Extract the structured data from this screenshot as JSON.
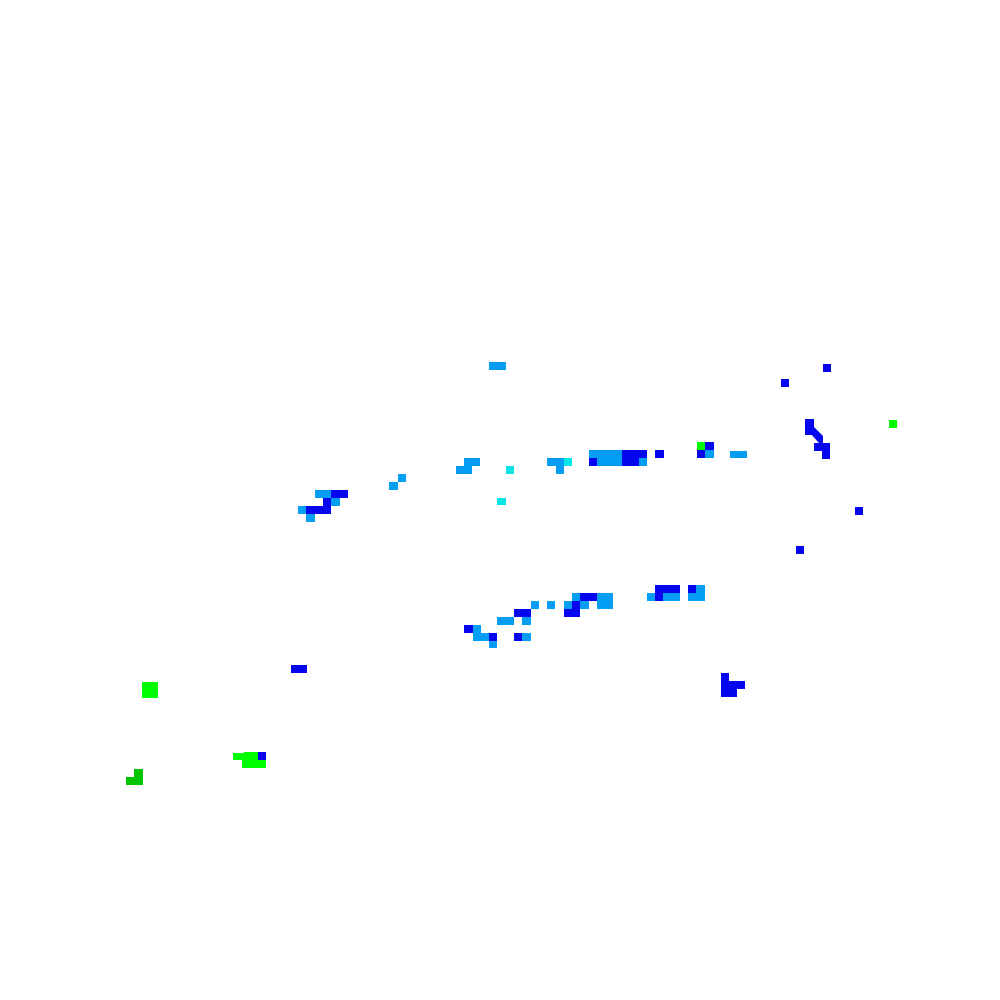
{
  "map": {
    "background": "#ffffff",
    "palette": {
      "light_blue": "#039ef3",
      "dark_blue": "#0505ee",
      "cyan": "#05e6e6",
      "green": "#00ff00",
      "dark_green": "#00c400"
    }
  }
}
